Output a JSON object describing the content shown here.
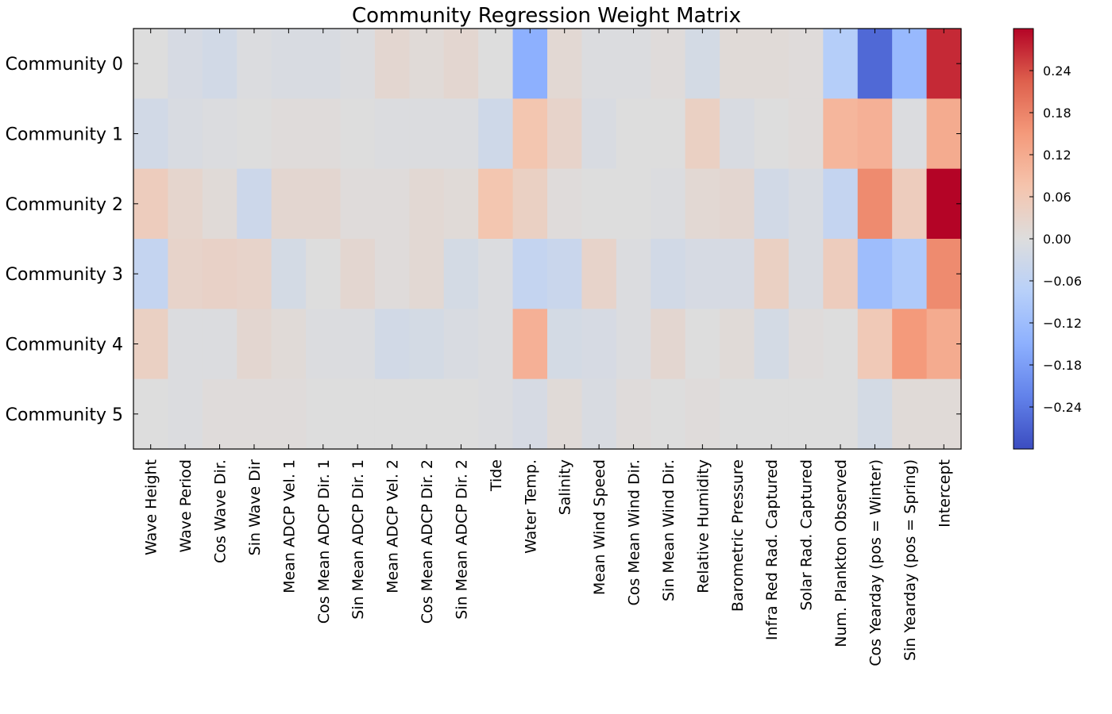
{
  "chart_data": {
    "type": "heatmap",
    "title": "Community Regression Weight Matrix",
    "xlabel": "",
    "ylabel": "",
    "rows": [
      "Community 0",
      "Community 1",
      "Community 2",
      "Community 3",
      "Community 4",
      "Community 5"
    ],
    "columns": [
      "Wave Height",
      "Wave Period",
      "Cos Wave Dir.",
      "Sin Wave Dir",
      "Mean ADCP Vel. 1",
      "Cos Mean ADCP Dir. 1",
      "Sin Mean ADCP Dir. 1",
      "Mean ADCP Vel. 2",
      "Cos Mean ADCP Dir. 2",
      "Sin Mean ADCP Dir. 2",
      "Tide",
      "Water Temp.",
      "Salinity",
      "Mean Wind Speed",
      "Cos Mean Wind Dir.",
      "Sin Mean Wind Dir.",
      "Relative Humidity",
      "Barometric Pressure",
      "Infra Red Rad. Captured",
      "Solar Rad. Captured",
      "Num. Plankton Observed",
      "Cos Yearday (pos = Winter)",
      "Sin Yearday (pos = Spring)",
      "Intercept"
    ],
    "values": [
      [
        0.0,
        -0.015,
        -0.025,
        -0.005,
        -0.01,
        -0.01,
        -0.005,
        0.02,
        0.01,
        0.02,
        0.0,
        -0.15,
        0.015,
        -0.005,
        -0.005,
        0.005,
        -0.02,
        0.01,
        0.01,
        0.005,
        -0.08,
        -0.26,
        -0.13,
        0.27
      ],
      [
        -0.025,
        -0.01,
        -0.005,
        0.0,
        0.005,
        0.005,
        0.0,
        -0.005,
        -0.005,
        -0.005,
        -0.03,
        0.07,
        0.03,
        -0.01,
        0.0,
        0.0,
        0.04,
        -0.01,
        0.0,
        0.005,
        0.1,
        0.11,
        -0.005,
        0.12
      ],
      [
        0.05,
        0.025,
        0.01,
        -0.035,
        0.02,
        0.02,
        0.005,
        0.005,
        0.015,
        0.01,
        0.07,
        0.04,
        0.005,
        0.0,
        0.0,
        -0.005,
        0.015,
        0.02,
        -0.025,
        -0.01,
        -0.05,
        0.17,
        0.05,
        0.3
      ],
      [
        -0.05,
        0.03,
        0.035,
        0.03,
        -0.02,
        0.0,
        0.02,
        0.005,
        0.015,
        -0.02,
        -0.005,
        -0.05,
        -0.04,
        0.03,
        -0.005,
        -0.025,
        -0.015,
        -0.015,
        0.04,
        -0.01,
        0.05,
        -0.12,
        -0.09,
        0.17
      ],
      [
        0.04,
        -0.005,
        -0.005,
        0.02,
        0.01,
        -0.005,
        -0.005,
        -0.025,
        -0.02,
        -0.01,
        -0.005,
        0.11,
        -0.02,
        -0.015,
        -0.005,
        0.02,
        0.0,
        0.01,
        -0.02,
        0.005,
        0.0,
        0.06,
        0.15,
        0.12
      ],
      [
        0.0,
        -0.005,
        0.005,
        0.005,
        0.005,
        0.0,
        0.0,
        0.0,
        0.0,
        0.0,
        -0.005,
        -0.015,
        0.01,
        -0.01,
        0.005,
        0.0,
        0.005,
        0.0,
        0.0,
        0.0,
        0.0,
        -0.02,
        0.01,
        0.01
      ]
    ],
    "colorbar": {
      "colormap": "coolwarm",
      "vmin": -0.3,
      "vmax": 0.3,
      "ticks": [
        0.24,
        0.18,
        0.12,
        0.06,
        0.0,
        -0.06,
        -0.12,
        -0.18,
        -0.24
      ],
      "tick_labels": [
        "0.24",
        "0.18",
        "0.12",
        "0.06",
        "0.00",
        "−0.06",
        "−0.12",
        "−0.18",
        "−0.24"
      ]
    }
  }
}
